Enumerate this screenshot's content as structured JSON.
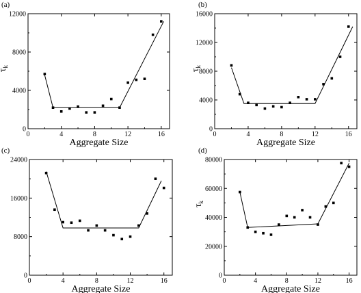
{
  "chart_data": [
    {
      "type": "scatter",
      "panel_label": "(a)",
      "xlabel": "Aggregate Size",
      "ylabel": "τ",
      "ylabel_sub": "k",
      "xlim": [
        0,
        17
      ],
      "ylim": [
        0,
        12000
      ],
      "xticks": [
        0,
        4,
        8,
        12,
        16
      ],
      "yticks": [
        0,
        4000,
        8000,
        12000
      ],
      "points": {
        "x": [
          2,
          3,
          4,
          5,
          6,
          7,
          8,
          9,
          10,
          11,
          12,
          13,
          14,
          15,
          16
        ],
        "y": [
          5700,
          2200,
          1800,
          2100,
          2300,
          1700,
          1700,
          2400,
          3100,
          2200,
          4800,
          5100,
          5200,
          9800,
          11200
        ]
      },
      "fit_line": {
        "x": [
          2,
          3,
          11,
          16.3
        ],
        "y": [
          5600,
          2200,
          2200,
          11200
        ]
      }
    },
    {
      "type": "scatter",
      "panel_label": "(b)",
      "xlabel": "Aggregate Size",
      "ylabel": "τ",
      "ylabel_sub": "k",
      "xlim": [
        0,
        17
      ],
      "ylim": [
        0,
        16000
      ],
      "xticks": [
        0,
        4,
        8,
        12,
        16
      ],
      "yticks": [
        0,
        4000,
        8000,
        12000,
        16000
      ],
      "points": {
        "x": [
          2,
          3,
          4,
          5,
          6,
          7,
          8,
          9,
          10,
          11,
          12,
          13,
          14,
          15,
          16
        ],
        "y": [
          8800,
          4800,
          3600,
          3300,
          2800,
          3100,
          3000,
          3600,
          4400,
          4100,
          4100,
          6200,
          7000,
          10000,
          14200
        ]
      },
      "fit_line": {
        "x": [
          2,
          3.5,
          12,
          16.5
        ],
        "y": [
          8500,
          3500,
          3500,
          14200
        ]
      }
    },
    {
      "type": "scatter",
      "panel_label": "(c)",
      "xlabel": "Aggregate Size",
      "ylabel": "",
      "ylabel_sub": "",
      "xlim": [
        0,
        17
      ],
      "ylim": [
        0,
        24000
      ],
      "xticks": [
        0,
        4,
        8,
        12,
        16
      ],
      "yticks": [
        0,
        8000,
        16000,
        24000
      ],
      "points": {
        "x": [
          2,
          3,
          4,
          5,
          6,
          7,
          8,
          9,
          10,
          11,
          12,
          13,
          14,
          15,
          16
        ],
        "y": [
          21200,
          13600,
          11000,
          10900,
          11300,
          9300,
          10300,
          9300,
          8300,
          7500,
          8000,
          10300,
          12800,
          20000,
          18100
        ]
      },
      "fit_line": {
        "x": [
          2,
          4,
          13,
          15.7
        ],
        "y": [
          21500,
          9800,
          9800,
          19600
        ]
      }
    },
    {
      "type": "scatter",
      "panel_label": "(d)",
      "xlabel": "Aggregate Size",
      "ylabel": "τ",
      "ylabel_sub": "k",
      "xlim": [
        0,
        17
      ],
      "ylim": [
        0,
        80000
      ],
      "xticks": [
        0,
        4,
        8,
        12,
        16
      ],
      "yticks": [
        0,
        20000,
        40000,
        60000,
        80000
      ],
      "points": {
        "x": [
          2,
          3,
          4,
          5,
          6,
          7,
          8,
          9,
          10,
          11,
          12,
          13,
          14,
          15,
          16
        ],
        "y": [
          57500,
          33000,
          30000,
          29000,
          28000,
          35000,
          41000,
          40000,
          45000,
          40000,
          35000,
          47500,
          50000,
          77500,
          75000
        ]
      },
      "fit_line": {
        "x": [
          2,
          3,
          12,
          16
        ],
        "y": [
          57500,
          33000,
          35500,
          77500
        ]
      }
    }
  ]
}
